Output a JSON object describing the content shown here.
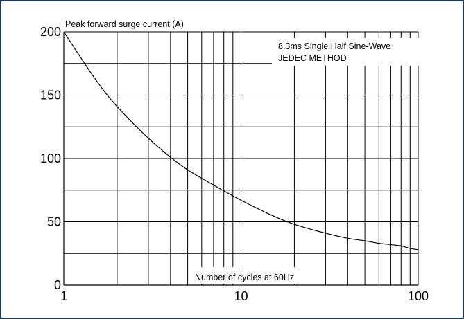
{
  "chart_data": {
    "type": "line",
    "x_scale": "log",
    "xlim": [
      1,
      100
    ],
    "ylim": [
      0,
      200
    ],
    "x_ticks": [
      1,
      10,
      100
    ],
    "x_tick_labels": [
      "1",
      "10",
      "100"
    ],
    "x_gridlines": [
      1,
      2,
      3,
      4,
      5,
      6,
      7,
      8,
      9,
      10,
      20,
      30,
      40,
      50,
      60,
      70,
      80,
      90,
      100
    ],
    "y_ticks": [
      0,
      50,
      100,
      150,
      200
    ],
    "y_tick_labels": [
      "0",
      "50",
      "100",
      "150",
      "200"
    ],
    "y_gridlines": [
      0,
      25,
      50,
      75,
      100,
      125,
      150,
      175,
      200
    ],
    "grid": true,
    "legend": "none",
    "ylabel": "Peak forward surge current (A)",
    "xlabel": "Number of cycles at 60Hz",
    "annotation_lines": [
      "8.3ms Single Half Sine-Wave",
      "JEDEC METHOD"
    ],
    "series": [
      {
        "x": [
          1,
          1.5,
          2,
          3,
          4,
          5,
          7,
          10,
          15,
          20,
          30,
          40,
          50,
          60,
          70,
          80,
          90,
          100
        ],
        "values": [
          200,
          163,
          141,
          116,
          101,
          91,
          79,
          67,
          55,
          48,
          41,
          37,
          35,
          33,
          32,
          31,
          29,
          28
        ]
      }
    ]
  },
  "colors": {
    "border": "#1f3a5f",
    "line": "#000000",
    "grid": "#000000",
    "background": "#ffffff"
  }
}
